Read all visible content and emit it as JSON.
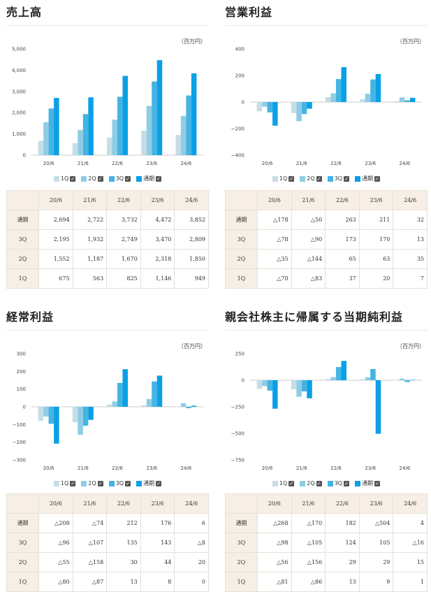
{
  "unit": "（百万円）",
  "colors": {
    "q1": "#c5dde6",
    "q2": "#8ecde5",
    "q3": "#44b4e3",
    "full": "#0aa0e6",
    "accent": "#f7efe5"
  },
  "legend": [
    {
      "key": "q1",
      "label": "1Q"
    },
    {
      "key": "q2",
      "label": "2Q"
    },
    {
      "key": "q3",
      "label": "3Q"
    },
    {
      "key": "full",
      "label": "通期"
    }
  ],
  "table_header": [
    "20/6",
    "21/6",
    "22/6",
    "23/6",
    "24/6"
  ],
  "chart_data": [
    {
      "type": "bar",
      "title": "売上高",
      "categories": [
        "20/6",
        "21/6",
        "22/6",
        "23/6",
        "24/6"
      ],
      "ylim": [
        0,
        5000
      ],
      "yticks": [
        0,
        1000,
        2000,
        3000,
        4000,
        5000
      ],
      "ytick_labels": [
        "0",
        "1,000",
        "2,000",
        "3,000",
        "4,000",
        "5,000"
      ],
      "grid": false,
      "series": [
        {
          "name": "1Q",
          "key": "q1",
          "values": [
            675,
            563,
            825,
            1146,
            949
          ]
        },
        {
          "name": "2Q",
          "key": "q2",
          "values": [
            1552,
            1187,
            1670,
            2318,
            1850
          ]
        },
        {
          "name": "3Q",
          "key": "q3",
          "values": [
            2195,
            1932,
            2749,
            3470,
            2809
          ]
        },
        {
          "name": "通期",
          "key": "full",
          "values": [
            2694,
            2722,
            3732,
            4472,
            3852
          ]
        }
      ],
      "table": [
        {
          "label": "通期",
          "cells": [
            "2,694",
            "2,722",
            "3,732",
            "4,472",
            "3,852"
          ]
        },
        {
          "label": "3Q",
          "cells": [
            "2,195",
            "1,932",
            "2,749",
            "3,470",
            "2,809"
          ]
        },
        {
          "label": "2Q",
          "cells": [
            "1,552",
            "1,187",
            "1,670",
            "2,318",
            "1,850"
          ]
        },
        {
          "label": "1Q",
          "cells": [
            "675",
            "563",
            "825",
            "1,146",
            "949"
          ]
        }
      ]
    },
    {
      "type": "bar",
      "title": "営業利益",
      "categories": [
        "20/6",
        "21/6",
        "22/6",
        "23/6",
        "24/6"
      ],
      "ylim": [
        -400,
        400
      ],
      "yticks": [
        -400,
        -200,
        0,
        200,
        400
      ],
      "ytick_labels": [
        "−400",
        "−200",
        "0",
        "200",
        "400"
      ],
      "grid": false,
      "series": [
        {
          "name": "1Q",
          "key": "q1",
          "values": [
            -70,
            -83,
            37,
            20,
            7
          ]
        },
        {
          "name": "2Q",
          "key": "q2",
          "values": [
            -35,
            -144,
            65,
            63,
            35
          ]
        },
        {
          "name": "3Q",
          "key": "q3",
          "values": [
            -78,
            -90,
            173,
            170,
            13
          ]
        },
        {
          "name": "通期",
          "key": "full",
          "values": [
            -178,
            -50,
            263,
            211,
            32
          ]
        }
      ],
      "table": [
        {
          "label": "通期",
          "cells": [
            "△178",
            "△50",
            "263",
            "211",
            "32"
          ]
        },
        {
          "label": "3Q",
          "cells": [
            "△78",
            "△90",
            "173",
            "170",
            "13"
          ]
        },
        {
          "label": "2Q",
          "cells": [
            "△35",
            "△144",
            "65",
            "63",
            "35"
          ]
        },
        {
          "label": "1Q",
          "cells": [
            "△70",
            "△83",
            "37",
            "20",
            "7"
          ]
        }
      ]
    },
    {
      "type": "bar",
      "title": "経常利益",
      "categories": [
        "20/6",
        "21/6",
        "22/6",
        "23/6",
        "24/6"
      ],
      "ylim": [
        -300,
        300
      ],
      "yticks": [
        -300,
        -200,
        -100,
        0,
        100,
        200,
        300
      ],
      "ytick_labels": [
        "−300",
        "−200",
        "−100",
        "0",
        "100",
        "200",
        "300"
      ],
      "grid": false,
      "series": [
        {
          "name": "1Q",
          "key": "q1",
          "values": [
            -80,
            -87,
            13,
            8,
            0
          ]
        },
        {
          "name": "2Q",
          "key": "q2",
          "values": [
            -55,
            -158,
            30,
            44,
            20
          ]
        },
        {
          "name": "3Q",
          "key": "q3",
          "values": [
            -96,
            -107,
            135,
            143,
            -8
          ]
        },
        {
          "name": "通期",
          "key": "full",
          "values": [
            -208,
            -74,
            212,
            176,
            6
          ]
        }
      ],
      "table": [
        {
          "label": "通期",
          "cells": [
            "△208",
            "△74",
            "212",
            "176",
            "6"
          ]
        },
        {
          "label": "3Q",
          "cells": [
            "△96",
            "△107",
            "135",
            "143",
            "△8"
          ]
        },
        {
          "label": "2Q",
          "cells": [
            "△55",
            "△158",
            "30",
            "44",
            "20"
          ]
        },
        {
          "label": "1Q",
          "cells": [
            "△80",
            "△87",
            "13",
            "8",
            "0"
          ]
        }
      ]
    },
    {
      "type": "bar",
      "title": "親会社株主に帰属する当期純利益",
      "categories": [
        "20/6",
        "21/6",
        "22/6",
        "23/6",
        "24/6"
      ],
      "ylim": [
        -750,
        250
      ],
      "yticks": [
        -750,
        -500,
        -250,
        0,
        250
      ],
      "ytick_labels": [
        "−750",
        "−500",
        "−250",
        "0",
        "250"
      ],
      "grid": false,
      "series": [
        {
          "name": "1Q",
          "key": "q1",
          "values": [
            -81,
            -86,
            13,
            9,
            1
          ]
        },
        {
          "name": "2Q",
          "key": "q2",
          "values": [
            -56,
            -156,
            29,
            29,
            15
          ]
        },
        {
          "name": "3Q",
          "key": "q3",
          "values": [
            -98,
            -105,
            124,
            105,
            -16
          ]
        },
        {
          "name": "通期",
          "key": "full",
          "values": [
            -268,
            -170,
            182,
            -504,
            4
          ]
        }
      ],
      "table": [
        {
          "label": "通期",
          "cells": [
            "△268",
            "△170",
            "182",
            "△504",
            "4"
          ]
        },
        {
          "label": "3Q",
          "cells": [
            "△98",
            "△105",
            "124",
            "105",
            "△16"
          ]
        },
        {
          "label": "2Q",
          "cells": [
            "△56",
            "△156",
            "29",
            "29",
            "15"
          ]
        },
        {
          "label": "1Q",
          "cells": [
            "△81",
            "△86",
            "13",
            "9",
            "1"
          ]
        }
      ]
    }
  ]
}
